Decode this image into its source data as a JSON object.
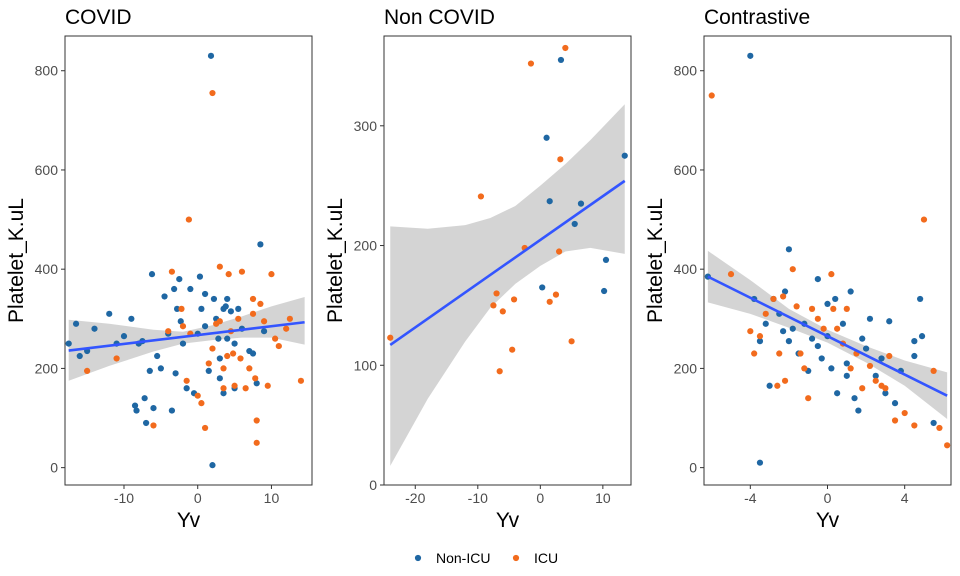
{
  "colors": {
    "non_icu": "#1f67a3",
    "icu": "#f26b1d",
    "fit_line": "#3355ff",
    "ci_band": "#cccccc"
  },
  "legend": [
    {
      "label": "Non-ICU",
      "color": "#1f67a3"
    },
    {
      "label": "ICU",
      "color": "#f26b1d"
    }
  ],
  "chart_data": [
    {
      "type": "scatter",
      "title": "COVID",
      "xlabel": "Yv",
      "ylabel": "Platelet_K.uL",
      "xlim": [
        -18,
        15.5
      ],
      "ylim": [
        -35,
        870
      ],
      "xticks": [
        -10,
        0,
        10
      ],
      "yticks": [
        0,
        200,
        400,
        600,
        800
      ],
      "grid": false,
      "series": [
        {
          "name": "Non-ICU",
          "color": "#1f67a3",
          "points": [
            [
              -17.5,
              250
            ],
            [
              -16.5,
              290
            ],
            [
              -16,
              225
            ],
            [
              -15,
              235
            ],
            [
              -14,
              280
            ],
            [
              -12,
              310
            ],
            [
              -11,
              250
            ],
            [
              -10,
              265
            ],
            [
              -9,
              300
            ],
            [
              -8.5,
              125
            ],
            [
              -8.3,
              115
            ],
            [
              -8,
              250
            ],
            [
              -7.5,
              255
            ],
            [
              -7.2,
              140
            ],
            [
              -7,
              90
            ],
            [
              -6.5,
              195
            ],
            [
              -6.2,
              390
            ],
            [
              -6,
              120
            ],
            [
              -5.5,
              225
            ],
            [
              -5,
              200
            ],
            [
              -4.5,
              345
            ],
            [
              -4,
              270
            ],
            [
              -3.5,
              115
            ],
            [
              -3.2,
              360
            ],
            [
              -3,
              190
            ],
            [
              -2.8,
              320
            ],
            [
              -2.5,
              380
            ],
            [
              -2.3,
              295
            ],
            [
              -2,
              250
            ],
            [
              -1.5,
              160
            ],
            [
              -1,
              360
            ],
            [
              -0.5,
              150
            ],
            [
              0,
              270
            ],
            [
              0.3,
              385
            ],
            [
              0.5,
              320
            ],
            [
              1,
              350
            ],
            [
              1,
              285
            ],
            [
              1.5,
              195
            ],
            [
              1.8,
              830
            ],
            [
              2,
              5
            ],
            [
              2.2,
              340
            ],
            [
              2.5,
              300
            ],
            [
              3,
              220
            ],
            [
              3,
              180
            ],
            [
              3.5,
              150
            ],
            [
              3.5,
              320
            ],
            [
              4,
              260
            ],
            [
              4,
              340
            ],
            [
              4.5,
              315
            ],
            [
              5,
              250
            ],
            [
              5,
              160
            ],
            [
              5.5,
              320
            ],
            [
              6,
              280
            ],
            [
              7,
              235
            ],
            [
              7.5,
              230
            ],
            [
              8,
              170
            ],
            [
              8.5,
              450
            ],
            [
              9,
              275
            ],
            [
              3.8,
              325
            ],
            [
              2.8,
              260
            ]
          ]
        },
        {
          "name": "ICU",
          "color": "#f26b1d",
          "points": [
            [
              -15,
              195
            ],
            [
              -11,
              220
            ],
            [
              -6,
              85
            ],
            [
              -4,
              275
            ],
            [
              -3.5,
              395
            ],
            [
              -2.2,
              320
            ],
            [
              -2,
              285
            ],
            [
              -1.5,
              175
            ],
            [
              -1.2,
              500
            ],
            [
              -1,
              270
            ],
            [
              0,
              145
            ],
            [
              0.5,
              130
            ],
            [
              1,
              80
            ],
            [
              1.5,
              210
            ],
            [
              2,
              755
            ],
            [
              2,
              240
            ],
            [
              2.5,
              290
            ],
            [
              3,
              405
            ],
            [
              3,
              295
            ],
            [
              3.5,
              160
            ],
            [
              3.5,
              200
            ],
            [
              4,
              225
            ],
            [
              4.2,
              390
            ],
            [
              4.5,
              275
            ],
            [
              4.8,
              230
            ],
            [
              5,
              165
            ],
            [
              5.5,
              300
            ],
            [
              6,
              395
            ],
            [
              6.5,
              160
            ],
            [
              7,
              200
            ],
            [
              7.5,
              310
            ],
            [
              7.8,
              180
            ],
            [
              8,
              95
            ],
            [
              8,
              50
            ],
            [
              8.5,
              330
            ],
            [
              9,
              295
            ],
            [
              9.5,
              165
            ],
            [
              10,
              390
            ],
            [
              10.5,
              260
            ],
            [
              11,
              245
            ],
            [
              12,
              280
            ],
            [
              12.5,
              300
            ],
            [
              14,
              175
            ],
            [
              7.5,
              340
            ],
            [
              5.8,
              220
            ]
          ]
        }
      ],
      "fit": {
        "x": [
          -17.5,
          14.5
        ],
        "y": [
          236,
          293
        ]
      },
      "ci": [
        [
          -17.5,
          175,
          298
        ],
        [
          -12,
          205,
          290
        ],
        [
          -6,
          234,
          278
        ],
        [
          -2,
          250,
          274
        ],
        [
          2,
          257,
          287
        ],
        [
          6,
          262,
          305
        ],
        [
          10,
          262,
          325
        ],
        [
          14.5,
          248,
          344
        ]
      ]
    },
    {
      "type": "scatter",
      "title": "Non COVID",
      "xlabel": "Yv",
      "ylabel": "Platelet_K.uL",
      "xlim": [
        -25,
        14.5
      ],
      "ylim": [
        0,
        375
      ],
      "xticks": [
        -20,
        -10,
        0,
        10
      ],
      "yticks": [
        0,
        100,
        200,
        300
      ],
      "grid": false,
      "series": [
        {
          "name": "Non-ICU",
          "color": "#1f67a3",
          "points": [
            [
              0.3,
              165
            ],
            [
              1,
              290
            ],
            [
              1.5,
              237
            ],
            [
              3.3,
              355
            ],
            [
              5.5,
              218
            ],
            [
              6.5,
              235
            ],
            [
              10.2,
              162
            ],
            [
              10.5,
              188
            ],
            [
              13.5,
              275
            ]
          ]
        },
        {
          "name": "ICU",
          "color": "#f26b1d",
          "points": [
            [
              -24,
              123
            ],
            [
              -9.5,
              241
            ],
            [
              -7.5,
              150
            ],
            [
              -7,
              160
            ],
            [
              -6.5,
              95
            ],
            [
              -6,
              145
            ],
            [
              -4.5,
              113
            ],
            [
              -4.2,
              155
            ],
            [
              -2.5,
              198
            ],
            [
              -1.5,
              352
            ],
            [
              1.5,
              153
            ],
            [
              2.5,
              159
            ],
            [
              3,
              195
            ],
            [
              3.2,
              272
            ],
            [
              4,
              365
            ],
            [
              5,
              120
            ]
          ]
        }
      ],
      "fit": {
        "x": [
          -24,
          13.5
        ],
        "y": [
          117,
          254
        ]
      },
      "ci": [
        [
          -24,
          16,
          216
        ],
        [
          -18,
          72,
          214
        ],
        [
          -12,
          120,
          217
        ],
        [
          -8,
          148,
          223
        ],
        [
          -4,
          168,
          233
        ],
        [
          0,
          183,
          250
        ],
        [
          4,
          195,
          268
        ],
        [
          8,
          198,
          288
        ],
        [
          13.5,
          193,
          318
        ]
      ]
    },
    {
      "type": "scatter",
      "title": "Contrastive",
      "xlabel": "Yv",
      "ylabel": "Platelet_K.uL",
      "xlim": [
        -6.4,
        6.4
      ],
      "ylim": [
        -35,
        870
      ],
      "xticks": [
        -4,
        0,
        4
      ],
      "yticks": [
        0,
        200,
        400,
        600,
        800
      ],
      "grid": false,
      "series": [
        {
          "name": "Non-ICU",
          "color": "#1f67a3",
          "points": [
            [
              -6.2,
              385
            ],
            [
              -4,
              830
            ],
            [
              -3.8,
              340
            ],
            [
              -3.5,
              255
            ],
            [
              -3.5,
              10
            ],
            [
              -3.2,
              290
            ],
            [
              -3,
              165
            ],
            [
              -2.8,
              340
            ],
            [
              -2.5,
              310
            ],
            [
              -2.2,
              355
            ],
            [
              -2,
              440
            ],
            [
              -2,
              255
            ],
            [
              -1.8,
              280
            ],
            [
              -1.5,
              230
            ],
            [
              -1.2,
              290
            ],
            [
              -1,
              195
            ],
            [
              -0.8,
              260
            ],
            [
              -0.5,
              380
            ],
            [
              -0.5,
              245
            ],
            [
              -0.3,
              220
            ],
            [
              0,
              330
            ],
            [
              0,
              265
            ],
            [
              0.2,
              200
            ],
            [
              0.5,
              150
            ],
            [
              0.8,
              290
            ],
            [
              1,
              210
            ],
            [
              1,
              185
            ],
            [
              1.2,
              355
            ],
            [
              1.4,
              140
            ],
            [
              1.6,
              115
            ],
            [
              1.8,
              260
            ],
            [
              2,
              240
            ],
            [
              2.2,
              300
            ],
            [
              2.5,
              185
            ],
            [
              2.8,
              220
            ],
            [
              3,
              150
            ],
            [
              3.2,
              295
            ],
            [
              3.5,
              130
            ],
            [
              3.8,
              195
            ],
            [
              4.5,
              255
            ],
            [
              4.5,
              225
            ],
            [
              4.8,
              340
            ],
            [
              4.9,
              265
            ],
            [
              5.5,
              90
            ],
            [
              -2.3,
              275
            ],
            [
              0.4,
              340
            ]
          ]
        },
        {
          "name": "ICU",
          "color": "#f26b1d",
          "points": [
            [
              -6,
              750
            ],
            [
              -5,
              390
            ],
            [
              -4,
              275
            ],
            [
              -3.8,
              230
            ],
            [
              -3.5,
              265
            ],
            [
              -3.2,
              310
            ],
            [
              -2.8,
              340
            ],
            [
              -2.6,
              165
            ],
            [
              -2.5,
              230
            ],
            [
              -2.3,
              345
            ],
            [
              -2.2,
              175
            ],
            [
              -1.8,
              400
            ],
            [
              -1.6,
              325
            ],
            [
              -1.4,
              230
            ],
            [
              -1.2,
              200
            ],
            [
              -0.8,
              320
            ],
            [
              -0.5,
              300
            ],
            [
              -0.2,
              280
            ],
            [
              0.2,
              390
            ],
            [
              0.3,
              320
            ],
            [
              0.5,
              280
            ],
            [
              0.8,
              250
            ],
            [
              1,
              320
            ],
            [
              1.2,
              200
            ],
            [
              1.5,
              230
            ],
            [
              1.8,
              160
            ],
            [
              2.2,
              205
            ],
            [
              2.5,
              175
            ],
            [
              3,
              160
            ],
            [
              3.2,
              225
            ],
            [
              3.5,
              95
            ],
            [
              4,
              110
            ],
            [
              4.5,
              85
            ],
            [
              5,
              500
            ],
            [
              5.5,
              195
            ],
            [
              5.8,
              80
            ],
            [
              6.2,
              45
            ],
            [
              -1,
              140
            ],
            [
              2.8,
              165
            ]
          ]
        }
      ],
      "fit": {
        "x": [
          -6.2,
          6.2
        ],
        "y": [
          385,
          145
        ]
      },
      "ci": [
        [
          -6.2,
          333,
          437
        ],
        [
          -4,
          310,
          378
        ],
        [
          -2,
          282,
          320
        ],
        [
          0,
          252,
          278
        ],
        [
          2,
          212,
          245
        ],
        [
          4,
          165,
          216
        ],
        [
          6.2,
          98,
          192
        ]
      ]
    }
  ]
}
